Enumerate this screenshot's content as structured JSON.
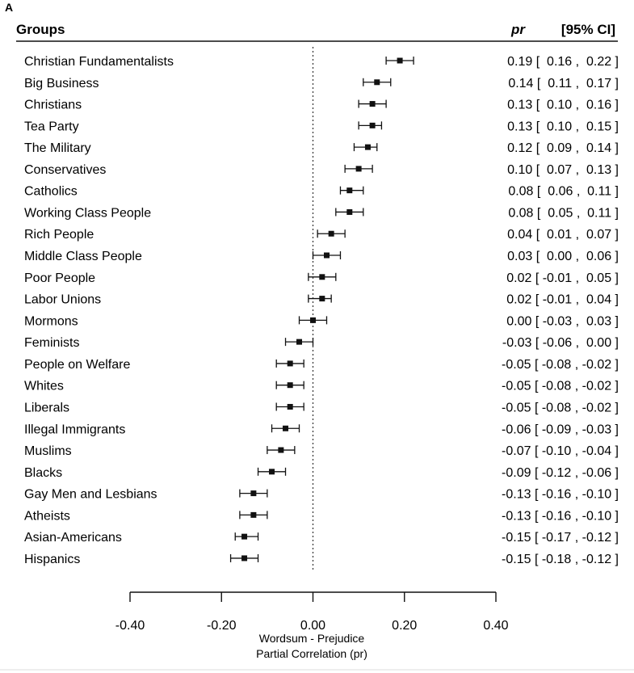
{
  "panel_label": "A",
  "header": {
    "groups": "Groups",
    "pr": "pr",
    "ci": "[95% CI]"
  },
  "colors": {
    "ink": "#111111",
    "divider": "#dddddd"
  },
  "chart_data": {
    "type": "forest",
    "xlabel": [
      "Wordsum - Prejudice",
      "Partial Correlation (pr)"
    ],
    "xlim": [
      -0.4,
      0.4
    ],
    "x_ticks": [
      -0.4,
      -0.2,
      0.0,
      0.2,
      0.4
    ],
    "x_tick_labels": [
      "-0.40",
      "-0.20",
      "0.00",
      "0.20",
      "0.40"
    ],
    "reference_line": 0.0,
    "rows": [
      {
        "group": "Christian Fundamentalists",
        "pr": 0.19,
        "lo": 0.16,
        "hi": 0.22,
        "text": "0.19 [  0.16 ,  0.22 ]"
      },
      {
        "group": "Big Business",
        "pr": 0.14,
        "lo": 0.11,
        "hi": 0.17,
        "text": "0.14 [  0.11 ,  0.17 ]"
      },
      {
        "group": "Christians",
        "pr": 0.13,
        "lo": 0.1,
        "hi": 0.16,
        "text": "0.13 [  0.10 ,  0.16 ]"
      },
      {
        "group": "Tea Party",
        "pr": 0.13,
        "lo": 0.1,
        "hi": 0.15,
        "text": "0.13 [  0.10 ,  0.15 ]"
      },
      {
        "group": "The Military",
        "pr": 0.12,
        "lo": 0.09,
        "hi": 0.14,
        "text": "0.12 [  0.09 ,  0.14 ]"
      },
      {
        "group": "Conservatives",
        "pr": 0.1,
        "lo": 0.07,
        "hi": 0.13,
        "text": "0.10 [  0.07 ,  0.13 ]"
      },
      {
        "group": "Catholics",
        "pr": 0.08,
        "lo": 0.06,
        "hi": 0.11,
        "text": "0.08 [  0.06 ,  0.11 ]"
      },
      {
        "group": "Working Class People",
        "pr": 0.08,
        "lo": 0.05,
        "hi": 0.11,
        "text": "0.08 [  0.05 ,  0.11 ]"
      },
      {
        "group": "Rich People",
        "pr": 0.04,
        "lo": 0.01,
        "hi": 0.07,
        "text": "0.04 [  0.01 ,  0.07 ]"
      },
      {
        "group": "Middle Class People",
        "pr": 0.03,
        "lo": 0.0,
        "hi": 0.06,
        "text": "0.03 [  0.00 ,  0.06 ]"
      },
      {
        "group": "Poor People",
        "pr": 0.02,
        "lo": -0.01,
        "hi": 0.05,
        "text": "0.02 [ -0.01 ,  0.05 ]"
      },
      {
        "group": "Labor Unions",
        "pr": 0.02,
        "lo": -0.01,
        "hi": 0.04,
        "text": "0.02 [ -0.01 ,  0.04 ]"
      },
      {
        "group": "Mormons",
        "pr": 0.0,
        "lo": -0.03,
        "hi": 0.03,
        "text": "0.00 [ -0.03 ,  0.03 ]"
      },
      {
        "group": "Feminists",
        "pr": -0.03,
        "lo": -0.06,
        "hi": 0.0,
        "text": "-0.03 [ -0.06 ,  0.00 ]"
      },
      {
        "group": "People on Welfare",
        "pr": -0.05,
        "lo": -0.08,
        "hi": -0.02,
        "text": "-0.05 [ -0.08 , -0.02 ]"
      },
      {
        "group": "Whites",
        "pr": -0.05,
        "lo": -0.08,
        "hi": -0.02,
        "text": "-0.05 [ -0.08 , -0.02 ]"
      },
      {
        "group": "Liberals",
        "pr": -0.05,
        "lo": -0.08,
        "hi": -0.02,
        "text": "-0.05 [ -0.08 , -0.02 ]"
      },
      {
        "group": "Illegal Immigrants",
        "pr": -0.06,
        "lo": -0.09,
        "hi": -0.03,
        "text": "-0.06 [ -0.09 , -0.03 ]"
      },
      {
        "group": "Muslims",
        "pr": -0.07,
        "lo": -0.1,
        "hi": -0.04,
        "text": "-0.07 [ -0.10 , -0.04 ]"
      },
      {
        "group": "Blacks",
        "pr": -0.09,
        "lo": -0.12,
        "hi": -0.06,
        "text": "-0.09 [ -0.12 , -0.06 ]"
      },
      {
        "group": "Gay Men and Lesbians",
        "pr": -0.13,
        "lo": -0.16,
        "hi": -0.1,
        "text": "-0.13 [ -0.16 , -0.10 ]"
      },
      {
        "group": "Atheists",
        "pr": -0.13,
        "lo": -0.16,
        "hi": -0.1,
        "text": "-0.13 [ -0.16 , -0.10 ]"
      },
      {
        "group": "Asian-Americans",
        "pr": -0.15,
        "lo": -0.17,
        "hi": -0.12,
        "text": "-0.15 [ -0.17 , -0.12 ]"
      },
      {
        "group": "Hispanics",
        "pr": -0.15,
        "lo": -0.18,
        "hi": -0.12,
        "text": "-0.15 [ -0.18 , -0.12 ]"
      }
    ]
  }
}
